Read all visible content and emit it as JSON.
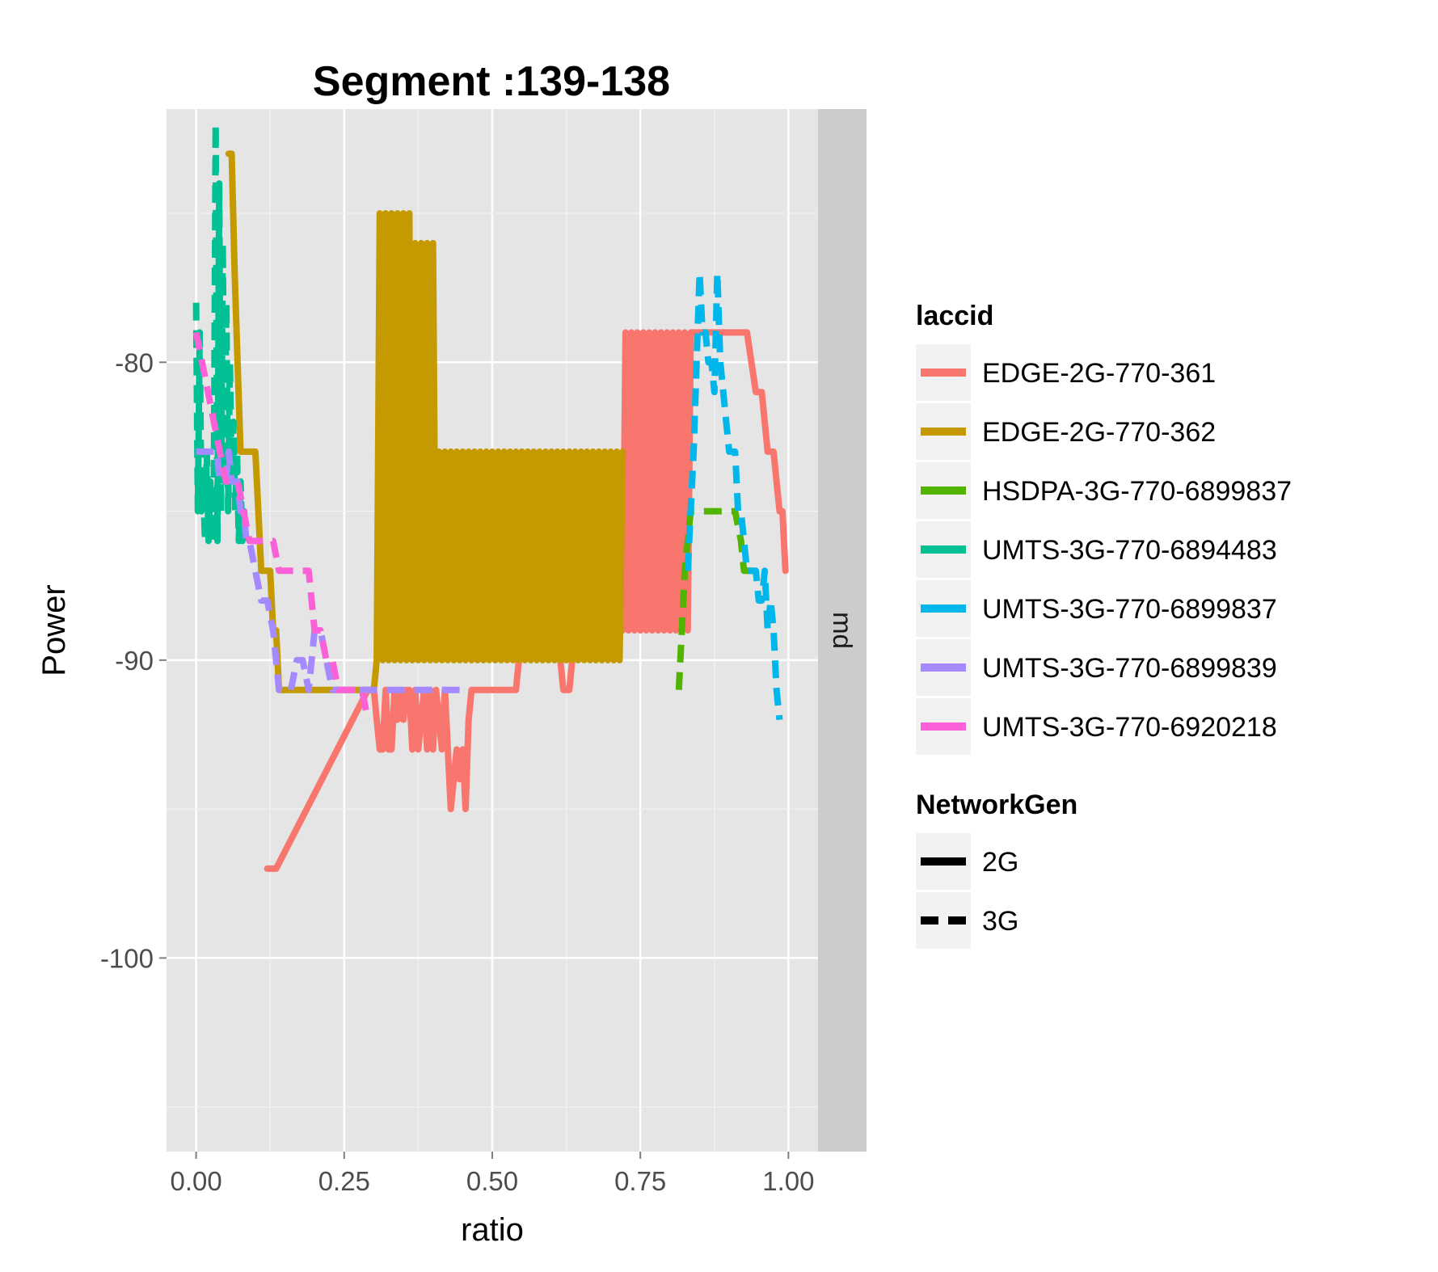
{
  "chart_data": {
    "type": "line",
    "title": "Segment :139-138",
    "xlabel": "ratio",
    "ylabel": "Power",
    "xlim": [
      -0.05,
      1.05
    ],
    "ylim": [
      -106.5,
      -71.5
    ],
    "x_ticks": [
      {
        "value": 0.0,
        "label": "0.00"
      },
      {
        "value": 0.25,
        "label": "0.25"
      },
      {
        "value": 0.5,
        "label": "0.50"
      },
      {
        "value": 0.75,
        "label": "0.75"
      },
      {
        "value": 1.0,
        "label": "1.00"
      }
    ],
    "y_ticks": [
      {
        "value": -80,
        "label": "-80"
      },
      {
        "value": -90,
        "label": "-90"
      },
      {
        "value": -100,
        "label": "-100"
      }
    ],
    "facet_strip": "md",
    "grid": true,
    "legend_position": "right",
    "legends": [
      {
        "title": "laccid",
        "entries": [
          "EDGE-2G-770-361",
          "EDGE-2G-770-362",
          "HSDPA-3G-770-6899837",
          "UMTS-3G-770-6894483",
          "UMTS-3G-770-6899837",
          "UMTS-3G-770-6899839",
          "UMTS-3G-770-6920218"
        ]
      },
      {
        "title": "NetworkGen",
        "entries": [
          "2G",
          "3G"
        ]
      }
    ],
    "series": [
      {
        "name": "EDGE-2G-770-361",
        "color": "#F8766D",
        "linetype": "solid",
        "x": [
          0.12,
          0.135,
          0.29,
          0.3,
          0.305,
          0.31,
          0.315,
          0.32,
          0.325,
          0.33,
          0.335,
          0.34,
          0.345,
          0.35,
          0.355,
          0.36,
          0.365,
          0.37,
          0.375,
          0.38,
          0.385,
          0.39,
          0.395,
          0.4,
          0.405,
          0.41,
          0.415,
          0.42,
          0.43,
          0.44,
          0.445,
          0.45,
          0.455,
          0.46,
          0.465,
          0.47,
          0.475,
          0.48,
          0.485,
          0.49,
          0.5,
          0.51,
          0.52,
          0.53,
          0.54,
          0.55,
          0.56,
          0.57,
          0.58,
          0.59,
          0.6,
          0.61,
          0.62,
          0.63,
          0.64,
          0.65,
          0.66,
          0.67,
          0.68,
          0.69,
          0.7,
          0.71,
          0.72,
          0.725,
          0.73,
          0.735,
          0.74,
          0.745,
          0.75,
          0.755,
          0.76,
          0.765,
          0.77,
          0.775,
          0.78,
          0.785,
          0.79,
          0.795,
          0.8,
          0.805,
          0.81,
          0.815,
          0.82,
          0.825,
          0.83,
          0.835,
          0.84,
          0.85,
          0.87,
          0.89,
          0.91,
          0.93,
          0.945,
          0.955,
          0.965,
          0.975,
          0.985,
          0.99,
          0.995
        ],
        "y": [
          -97,
          -97,
          -91,
          -91,
          -92,
          -93,
          -93,
          -91,
          -93,
          -93,
          -91,
          -92,
          -91,
          -92,
          -91,
          -91,
          -93,
          -91,
          -93,
          -92,
          -91,
          -93,
          -91,
          -93,
          -91,
          -92,
          -93,
          -91,
          -95,
          -93,
          -94,
          -93,
          -95,
          -92,
          -91,
          -91,
          -91,
          -91,
          -91,
          -91,
          -91,
          -91,
          -91,
          -91,
          -91,
          -89,
          -89,
          -89,
          -89,
          -89,
          -89,
          -89,
          -91,
          -91,
          -89,
          -89,
          -89,
          -89,
          -89,
          -89,
          -89,
          -89,
          -89,
          -79,
          -89,
          -79,
          -89,
          -79,
          -89,
          -79,
          -89,
          -79,
          -89,
          -79,
          -89,
          -79,
          -89,
          -79,
          -89,
          -79,
          -89,
          -79,
          -89,
          -79,
          -89,
          -79,
          -79,
          -79,
          -79,
          -79,
          -79,
          -79,
          -81,
          -81,
          -83,
          -83,
          -85,
          -85,
          -87
        ]
      },
      {
        "name": "EDGE-2G-770-362",
        "color": "#C49A00",
        "linetype": "solid",
        "x": [
          0.055,
          0.06,
          0.065,
          0.07,
          0.075,
          0.08,
          0.085,
          0.09,
          0.095,
          0.1,
          0.105,
          0.11,
          0.115,
          0.12,
          0.125,
          0.13,
          0.135,
          0.14,
          0.15,
          0.16,
          0.18,
          0.2,
          0.22,
          0.24,
          0.26,
          0.28,
          0.3,
          0.305,
          0.31,
          0.315,
          0.32,
          0.325,
          0.33,
          0.335,
          0.34,
          0.345,
          0.35,
          0.355,
          0.36,
          0.365,
          0.37,
          0.375,
          0.38,
          0.385,
          0.39,
          0.395,
          0.4,
          0.405,
          0.41,
          0.415,
          0.42,
          0.425,
          0.43,
          0.435,
          0.44,
          0.445,
          0.45,
          0.455,
          0.46,
          0.465,
          0.47,
          0.475,
          0.48,
          0.485,
          0.49,
          0.495,
          0.5,
          0.505,
          0.51,
          0.515,
          0.52,
          0.525,
          0.53,
          0.535,
          0.54,
          0.545,
          0.55,
          0.555,
          0.56,
          0.565,
          0.57,
          0.575,
          0.58,
          0.585,
          0.59,
          0.595,
          0.6,
          0.605,
          0.61,
          0.615,
          0.62,
          0.625,
          0.63,
          0.635,
          0.64,
          0.645,
          0.65,
          0.655,
          0.66,
          0.665,
          0.67,
          0.675,
          0.68,
          0.685,
          0.69,
          0.695,
          0.7,
          0.705,
          0.71,
          0.715,
          0.72
        ],
        "y": [
          -73,
          -73,
          -77,
          -80,
          -83,
          -83,
          -83,
          -83,
          -83,
          -83,
          -85,
          -87,
          -87,
          -87,
          -87,
          -89,
          -89,
          -91,
          -91,
          -91,
          -91,
          -91,
          -91,
          -91,
          -91,
          -91,
          -91,
          -90,
          -75,
          -90,
          -75,
          -90,
          -75,
          -90,
          -75,
          -90,
          -75,
          -90,
          -75,
          -90,
          -76,
          -90,
          -76,
          -90,
          -76,
          -90,
          -76,
          -90,
          -83,
          -90,
          -83,
          -90,
          -83,
          -90,
          -83,
          -90,
          -83,
          -90,
          -83,
          -90,
          -83,
          -90,
          -83,
          -90,
          -83,
          -90,
          -83,
          -90,
          -83,
          -90,
          -83,
          -90,
          -83,
          -90,
          -83,
          -90,
          -83,
          -90,
          -83,
          -90,
          -83,
          -90,
          -83,
          -90,
          -83,
          -90,
          -83,
          -90,
          -83,
          -90,
          -83,
          -90,
          -83,
          -90,
          -83,
          -90,
          -83,
          -90,
          -83,
          -90,
          -83,
          -90,
          -83,
          -90,
          -83,
          -90,
          -83,
          -90,
          -83,
          -90,
          -83
        ]
      },
      {
        "name": "HSDPA-3G-770-6899837",
        "color": "#53B400",
        "linetype": "dashed",
        "x": [
          0.815,
          0.82,
          0.825,
          0.83,
          0.835,
          0.84,
          0.85,
          0.86,
          0.87,
          0.88,
          0.89,
          0.9,
          0.91,
          0.92,
          0.925,
          0.93,
          0.94,
          0.95
        ],
        "y": [
          -91,
          -89,
          -87,
          -86,
          -85,
          -85,
          -85,
          -85,
          -85,
          -85,
          -85,
          -85,
          -85,
          -86,
          -87,
          -87,
          -87,
          -87
        ]
      },
      {
        "name": "UMTS-3G-770-6894483",
        "color": "#00C094",
        "linetype": "dashed",
        "x": [
          0.0,
          0.003,
          0.006,
          0.009,
          0.012,
          0.015,
          0.018,
          0.021,
          0.024,
          0.027,
          0.03,
          0.033,
          0.036,
          0.039,
          0.042,
          0.045,
          0.048,
          0.051,
          0.054,
          0.057,
          0.06,
          0.063,
          0.066,
          0.069,
          0.072,
          0.075,
          0.078,
          0.081,
          0.084
        ],
        "y": [
          -78,
          -85,
          -79,
          -85,
          -84,
          -86,
          -83,
          -86,
          -84,
          -86,
          -84,
          -72,
          -86,
          -74,
          -85,
          -76,
          -84,
          -78,
          -85,
          -80,
          -84,
          -82,
          -85,
          -83,
          -86,
          -84,
          -86,
          -85,
          -86
        ]
      },
      {
        "name": "UMTS-3G-770-6899837",
        "color": "#00B6EB",
        "linetype": "dashed",
        "x": [
          0.83,
          0.84,
          0.845,
          0.85,
          0.855,
          0.86,
          0.865,
          0.87,
          0.875,
          0.88,
          0.885,
          0.89,
          0.895,
          0.9,
          0.905,
          0.91,
          0.915,
          0.92,
          0.925,
          0.93,
          0.935,
          0.94,
          0.945,
          0.95,
          0.955,
          0.96,
          0.965,
          0.97,
          0.975,
          0.98,
          0.985
        ],
        "y": [
          -87,
          -83,
          -80,
          -77,
          -79,
          -79,
          -80,
          -80,
          -81,
          -77,
          -80,
          -81,
          -82,
          -83,
          -83,
          -83,
          -85,
          -85,
          -86,
          -87,
          -87,
          -87,
          -87,
          -88,
          -88,
          -87,
          -89,
          -88,
          -89,
          -91,
          -92
        ]
      },
      {
        "name": "UMTS-3G-770-6899839",
        "color": "#A58AFF",
        "linetype": "dashed",
        "x": [
          0.0,
          0.01,
          0.02,
          0.03,
          0.035,
          0.04,
          0.045,
          0.05,
          0.055,
          0.06,
          0.065,
          0.07,
          0.075,
          0.08,
          0.085,
          0.09,
          0.1,
          0.11,
          0.12,
          0.13,
          0.14,
          0.15,
          0.16,
          0.17,
          0.18,
          0.19,
          0.2,
          0.21,
          0.22,
          0.23,
          0.25,
          0.28,
          0.3,
          0.35,
          0.4,
          0.45
        ],
        "y": [
          -83,
          -83,
          -83,
          -83,
          -83,
          -84,
          -84,
          -84,
          -83,
          -84,
          -84,
          -84,
          -85,
          -85,
          -86,
          -86,
          -87,
          -88,
          -88,
          -89,
          -91,
          -91,
          -91,
          -90,
          -90,
          -91,
          -89,
          -89,
          -90,
          -91,
          -91,
          -91,
          -91,
          -91,
          -91,
          -91
        ]
      },
      {
        "name": "UMTS-3G-770-6920218",
        "color": "#FB61D7",
        "linetype": "dashed",
        "x": [
          0.0,
          0.01,
          0.02,
          0.03,
          0.04,
          0.05,
          0.06,
          0.07,
          0.08,
          0.09,
          0.1,
          0.11,
          0.12,
          0.13,
          0.14,
          0.15,
          0.16,
          0.17,
          0.18,
          0.19,
          0.2,
          0.21,
          0.22,
          0.23,
          0.24,
          0.25,
          0.26,
          0.27,
          0.28,
          0.29
        ],
        "y": [
          -79,
          -80,
          -81,
          -82,
          -83,
          -84,
          -84,
          -84,
          -85,
          -86,
          -86,
          -86,
          -86,
          -86,
          -87,
          -87,
          -87,
          -87,
          -87,
          -87,
          -89,
          -89,
          -90,
          -90,
          -91,
          -91,
          -91,
          -91,
          -91,
          -92
        ]
      }
    ]
  }
}
